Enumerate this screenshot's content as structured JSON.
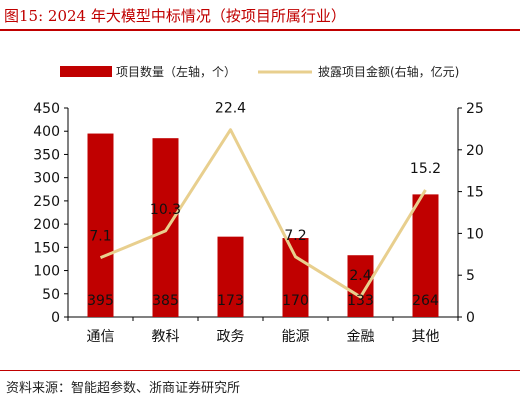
{
  "header": {
    "title": "图15:   2024 年大模型中标情况（按项目所属行业）"
  },
  "footer": {
    "source": "资料来源：智能超参数、浙商证券研究所"
  },
  "colors": {
    "accent": "#c00000",
    "bar": "#c00000",
    "line": "#e8cf8e",
    "axis": "#000000"
  },
  "chart_data": {
    "type": "bar",
    "categories": [
      "通信",
      "教科",
      "政务",
      "能源",
      "金融",
      "其他"
    ],
    "series": [
      {
        "name": "项目数量（左轴，个）",
        "type": "bar",
        "axis": "left",
        "values": [
          395,
          385,
          173,
          170,
          133,
          264
        ],
        "labels": [
          "395",
          "385",
          "173",
          "170",
          "133",
          "264"
        ]
      },
      {
        "name": "披露项目金额(右轴，亿元)",
        "type": "line",
        "axis": "right",
        "values": [
          7.1,
          10.3,
          22.4,
          7.2,
          2.4,
          15.2
        ],
        "labels": [
          "7.1",
          "10.3",
          "22.4",
          "7.2",
          "2.4",
          "15.2"
        ]
      }
    ],
    "y_left": {
      "lim": [
        0,
        450
      ],
      "ticks": [
        "0",
        "50",
        "100",
        "150",
        "200",
        "250",
        "300",
        "350",
        "400",
        "450"
      ]
    },
    "y_right": {
      "lim": [
        0,
        25
      ],
      "ticks": [
        "0",
        "5",
        "10",
        "15",
        "20",
        "25"
      ]
    },
    "grid": false,
    "legend_position": "top"
  }
}
